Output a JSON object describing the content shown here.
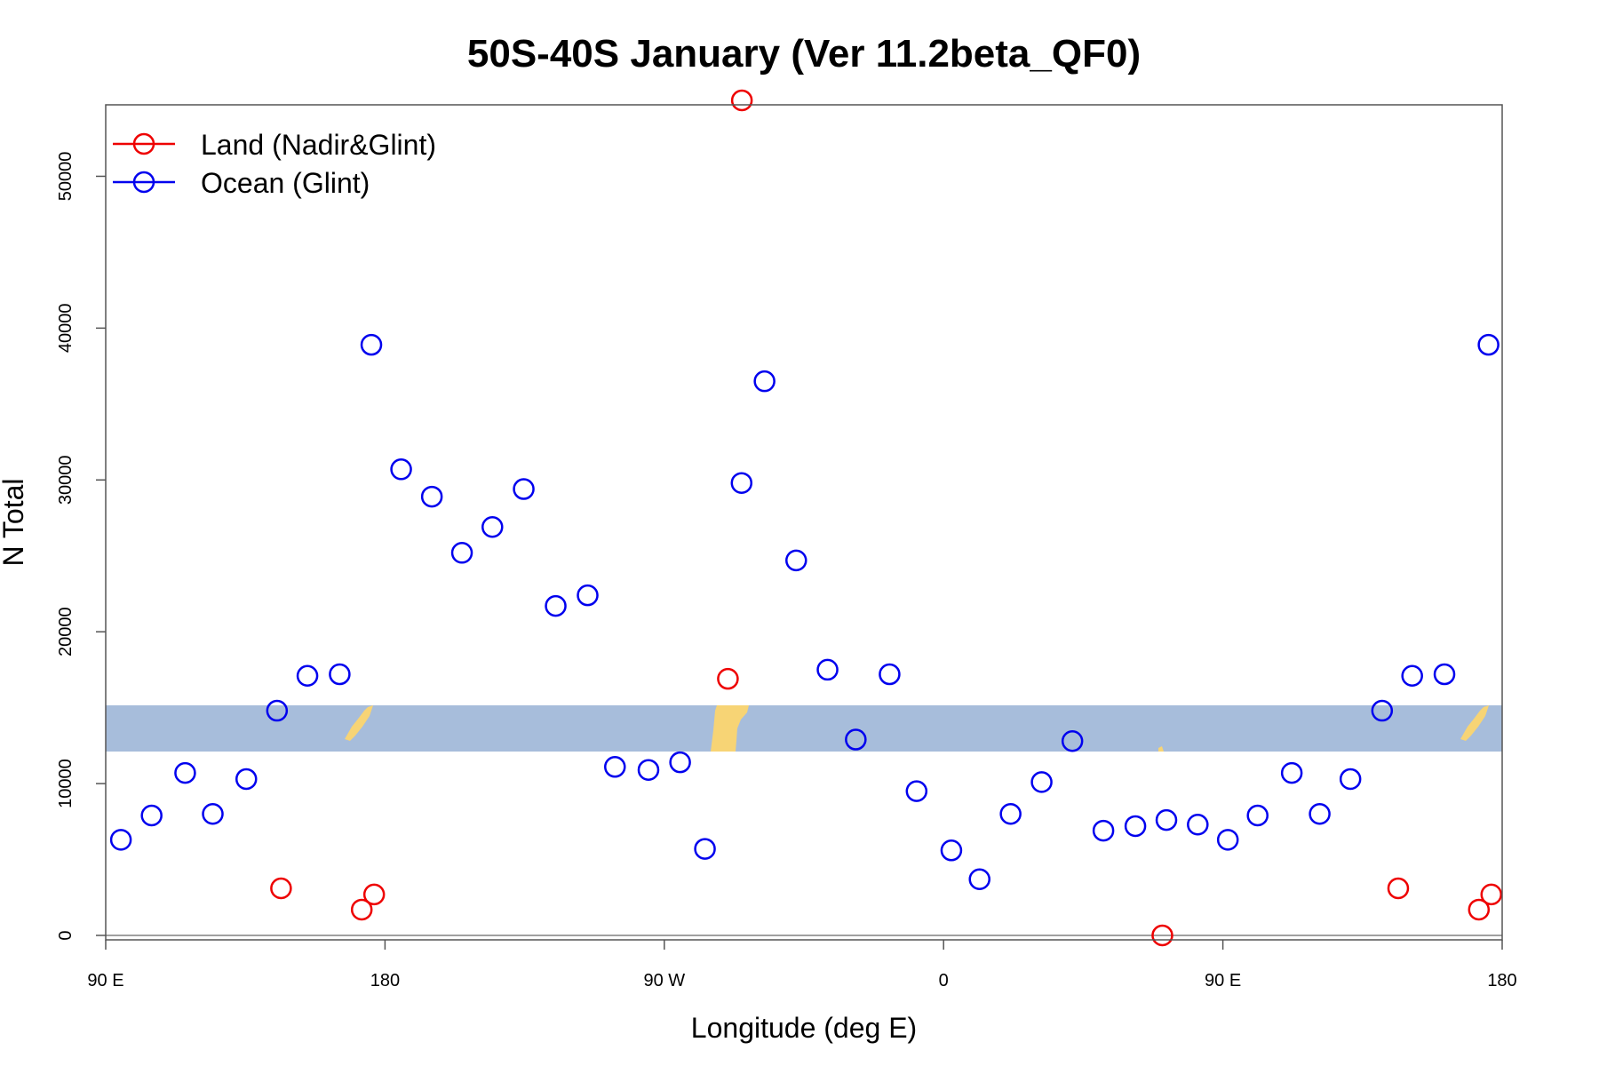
{
  "chart_data": {
    "type": "scatter",
    "title": "50S-40S January (Ver 11.2beta_QF0)",
    "xlabel": "Longitude (deg E)",
    "ylabel": "N Total",
    "xlim": [
      90,
      540
    ],
    "ylim": [
      0,
      55000
    ],
    "x_ticks": [
      {
        "value": 90,
        "label": "90 E"
      },
      {
        "value": 180,
        "label": "180"
      },
      {
        "value": 270,
        "label": "90 W"
      },
      {
        "value": 360,
        "label": "0"
      },
      {
        "value": 450,
        "label": "90 E"
      },
      {
        "value": 540,
        "label": "180"
      }
    ],
    "y_ticks": [
      {
        "value": 0,
        "label": "0"
      },
      {
        "value": 10000,
        "label": "10000"
      },
      {
        "value": 20000,
        "label": "20000"
      },
      {
        "value": 30000,
        "label": "30000"
      },
      {
        "value": 40000,
        "label": "40000"
      },
      {
        "value": 50000,
        "label": "50000"
      }
    ],
    "legend_position": "top-left",
    "background_map": {
      "land_color": "#f7d475",
      "ocean_color": "#a7bddb"
    },
    "series": [
      {
        "name": "Land (Nadir&Glint)",
        "color": "#ee0000",
        "points": [
          [
            146.5,
            3100
          ],
          [
            172.5,
            1700
          ],
          [
            176.5,
            2700
          ],
          [
            290.5,
            16900
          ],
          [
            430.5,
            0
          ],
          [
            506.5,
            3100
          ],
          [
            532.5,
            1700
          ],
          [
            536.5,
            2700
          ],
          [
            295,
            55000
          ]
        ]
      },
      {
        "name": "Ocean (Glint)",
        "color": "#0000ee",
        "points": [
          [
            94.9,
            6300
          ],
          [
            104.8,
            7900
          ],
          [
            115.6,
            10700
          ],
          [
            124.5,
            8000
          ],
          [
            135.3,
            10300
          ],
          [
            145.2,
            14800
          ],
          [
            155.0,
            17100
          ],
          [
            165.4,
            17200
          ],
          [
            185.2,
            30700
          ],
          [
            195.1,
            28900
          ],
          [
            204.8,
            25200
          ],
          [
            214.6,
            26900
          ],
          [
            224.7,
            29400
          ],
          [
            235.0,
            21700
          ],
          [
            245.3,
            22400
          ],
          [
            254.1,
            11100
          ],
          [
            264.9,
            10900
          ],
          [
            275.1,
            11400
          ],
          [
            283.1,
            5700
          ],
          [
            294.9,
            29800
          ],
          [
            302.3,
            36500
          ],
          [
            312.5,
            24700
          ],
          [
            322.6,
            17500
          ],
          [
            331.7,
            12900
          ],
          [
            342.6,
            17200
          ],
          [
            351.3,
            9500
          ],
          [
            362.5,
            5600
          ],
          [
            371.6,
            3700
          ],
          [
            381.6,
            8000
          ],
          [
            391.6,
            10100
          ],
          [
            401.5,
            12800
          ],
          [
            411.5,
            6900
          ],
          [
            421.8,
            7200
          ],
          [
            431.8,
            7600
          ],
          [
            441.9,
            7300
          ],
          [
            451.6,
            6300
          ],
          [
            461.2,
            7900
          ],
          [
            472.2,
            10700
          ],
          [
            481.2,
            8000
          ],
          [
            491.1,
            10300
          ],
          [
            501.3,
            14800
          ],
          [
            511.0,
            17100
          ],
          [
            521.4,
            17200
          ],
          [
            535.6,
            38900
          ],
          [
            175.6,
            38900
          ]
        ]
      }
    ]
  }
}
